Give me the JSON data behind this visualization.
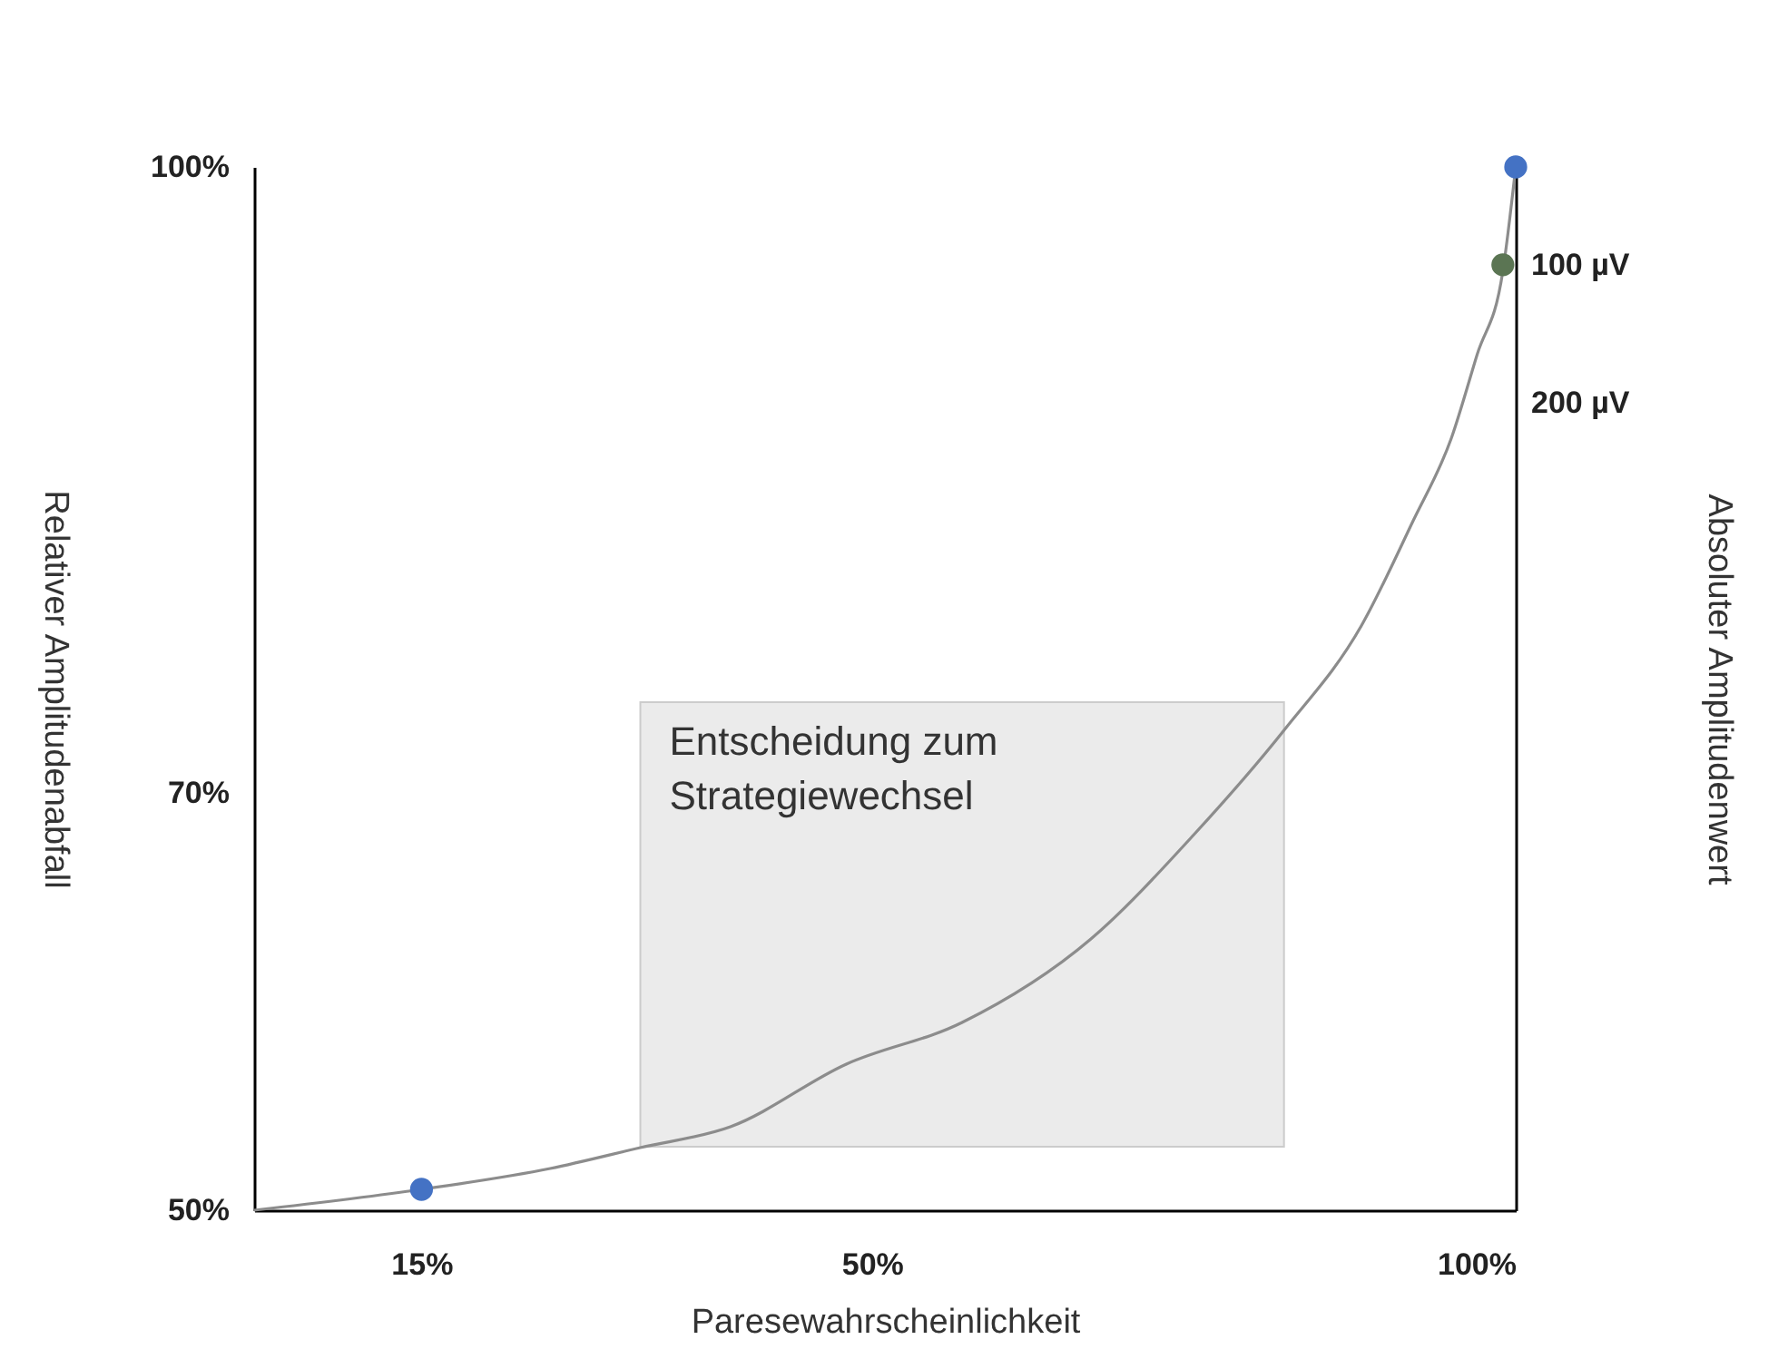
{
  "chart_data": {
    "type": "line",
    "xlabel": "Paresewahrscheinlichkeit",
    "ylabel": "Relativer Amplitudenabfall",
    "y2label": "Absoluter Amplitudenwert",
    "xlim": [
      2,
      100
    ],
    "xticks": [
      {
        "value": 15,
        "label": "15%"
      },
      {
        "value": 50,
        "label": "50%"
      },
      {
        "value": 100,
        "label": "100%"
      }
    ],
    "ylim": [
      50,
      100
    ],
    "yticks": [
      {
        "value": 50,
        "label": "50%"
      },
      {
        "value": 70,
        "label": "70%"
      },
      {
        "value": 100,
        "label": "100%"
      }
    ],
    "y2lim": [
      786,
      29
    ],
    "y2ticks": [
      {
        "value": 100,
        "label": "100 µV"
      },
      {
        "value": 200,
        "label": "200 µV"
      }
    ],
    "grid": false,
    "series": [
      {
        "color": "#8c8c8c",
        "x": [
          2,
          15,
          25,
          32,
          39,
          48,
          57,
          67,
          75,
          82,
          88,
          92,
          95,
          97,
          99,
          100
        ],
        "values": [
          50,
          51,
          52,
          53,
          54,
          57,
          59,
          63,
          68,
          73,
          78,
          83,
          87,
          91,
          95,
          100
        ]
      },
      {
        "type": "scatter",
        "color": "#4472c4",
        "x": [
          15,
          100
        ],
        "values": [
          51,
          100
        ]
      },
      {
        "type": "scatter",
        "axis": "y2",
        "color": "#5b7553",
        "x": [
          99
        ],
        "values": [
          100
        ]
      }
    ],
    "bands": [
      {
        "axis": "x",
        "from": 32,
        "to": 82,
        "label": "Entscheidung zum Strategiewechsel",
        "color": "#ebebeb"
      }
    ]
  }
}
